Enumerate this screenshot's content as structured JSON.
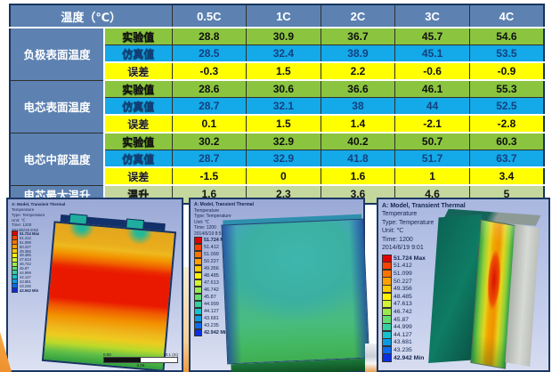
{
  "table": {
    "header": {
      "label": "温度（℃）",
      "columns": [
        "0.5C",
        "1C",
        "2C",
        "3C",
        "4C"
      ]
    },
    "groups": [
      {
        "label": "负极表面温度",
        "rows": [
          {
            "metric": "实验值",
            "type": "exp",
            "values": [
              "28.8",
              "30.9",
              "36.7",
              "45.7",
              "54.6"
            ]
          },
          {
            "metric": "仿真值",
            "type": "sim",
            "values": [
              "28.5",
              "32.4",
              "38.9",
              "45.1",
              "53.5"
            ]
          },
          {
            "metric": "误差",
            "type": "err",
            "values": [
              "-0.3",
              "1.5",
              "2.2",
              "-0.6",
              "-0.9"
            ]
          }
        ]
      },
      {
        "label": "电芯表面温度",
        "rows": [
          {
            "metric": "实验值",
            "type": "exp",
            "values": [
              "28.6",
              "30.6",
              "36.6",
              "46.1",
              "55.3"
            ]
          },
          {
            "metric": "仿真值",
            "type": "sim",
            "values": [
              "28.7",
              "32.1",
              "38",
              "44",
              "52.5"
            ]
          },
          {
            "metric": "误差",
            "type": "err",
            "values": [
              "0.1",
              "1.5",
              "1.4",
              "-2.1",
              "-2.8"
            ]
          }
        ]
      },
      {
        "label": "电芯中部温度",
        "rows": [
          {
            "metric": "实验值",
            "type": "exp",
            "values": [
              "30.2",
              "32.9",
              "40.2",
              "50.7",
              "60.3"
            ]
          },
          {
            "metric": "仿真值",
            "type": "sim",
            "values": [
              "28.7",
              "32.9",
              "41.8",
              "51.7",
              "63.7"
            ]
          },
          {
            "metric": "误差",
            "type": "err",
            "values": [
              "-1.5",
              "0",
              "1.6",
              "1",
              "3.4"
            ]
          }
        ]
      },
      {
        "label": "电芯最大温升",
        "rows": [
          {
            "metric": "温升",
            "type": "rise",
            "values": [
              "1.6",
              "2.3",
              "3.6",
              "4.6",
              "5"
            ]
          }
        ]
      }
    ],
    "colors": {
      "header_bg": "#5d82b2",
      "experiment_row_bg": "#8bc53f",
      "simulation_row_bg": "#14a9e8",
      "error_row_bg": "#ffff00",
      "rise_row_bg": "#c4d79c",
      "grid_line": "#30302e"
    }
  },
  "thermal_legend": {
    "labels": [
      "51.724 Max",
      "51.412",
      "51.099",
      "50.227",
      "49.356",
      "48.485",
      "47.613",
      "46.742",
      "45.87",
      "44.999",
      "44.127",
      "43.681",
      "43.235",
      "42.942 Min"
    ],
    "colors": [
      "#e00000",
      "#f64400",
      "#fe7300",
      "#ffa000",
      "#ffc900",
      "#fff200",
      "#d2f432",
      "#9ce94f",
      "#63dc72",
      "#35cfa0",
      "#16c2cb",
      "#0b9be4",
      "#0b6bf0",
      "#0b2ee0"
    ]
  },
  "panels": [
    {
      "header_lines": [
        "A: Model, Transient Thermal",
        "Temperature",
        "Type: Temperature",
        "Unit: ℃",
        "Time: 1200",
        "2014/6/19 8:52"
      ],
      "scale_bar": {
        "left": "0.00",
        "right": "0.1 (m)",
        "center": "0.05"
      }
    },
    {
      "header_lines": [
        "A: Model, Transient Thermal",
        "Temperature",
        "Type: Temperature",
        "Unit: ℃",
        "Time: 1200",
        "2014/6/19 8:54"
      ]
    },
    {
      "header_lines": [
        "A: Model, Transient Thermal",
        "Temperature",
        "Type: Temperature",
        "Unit: ℃",
        "Time: 1200",
        "2014/6/19 9:01"
      ]
    }
  ]
}
